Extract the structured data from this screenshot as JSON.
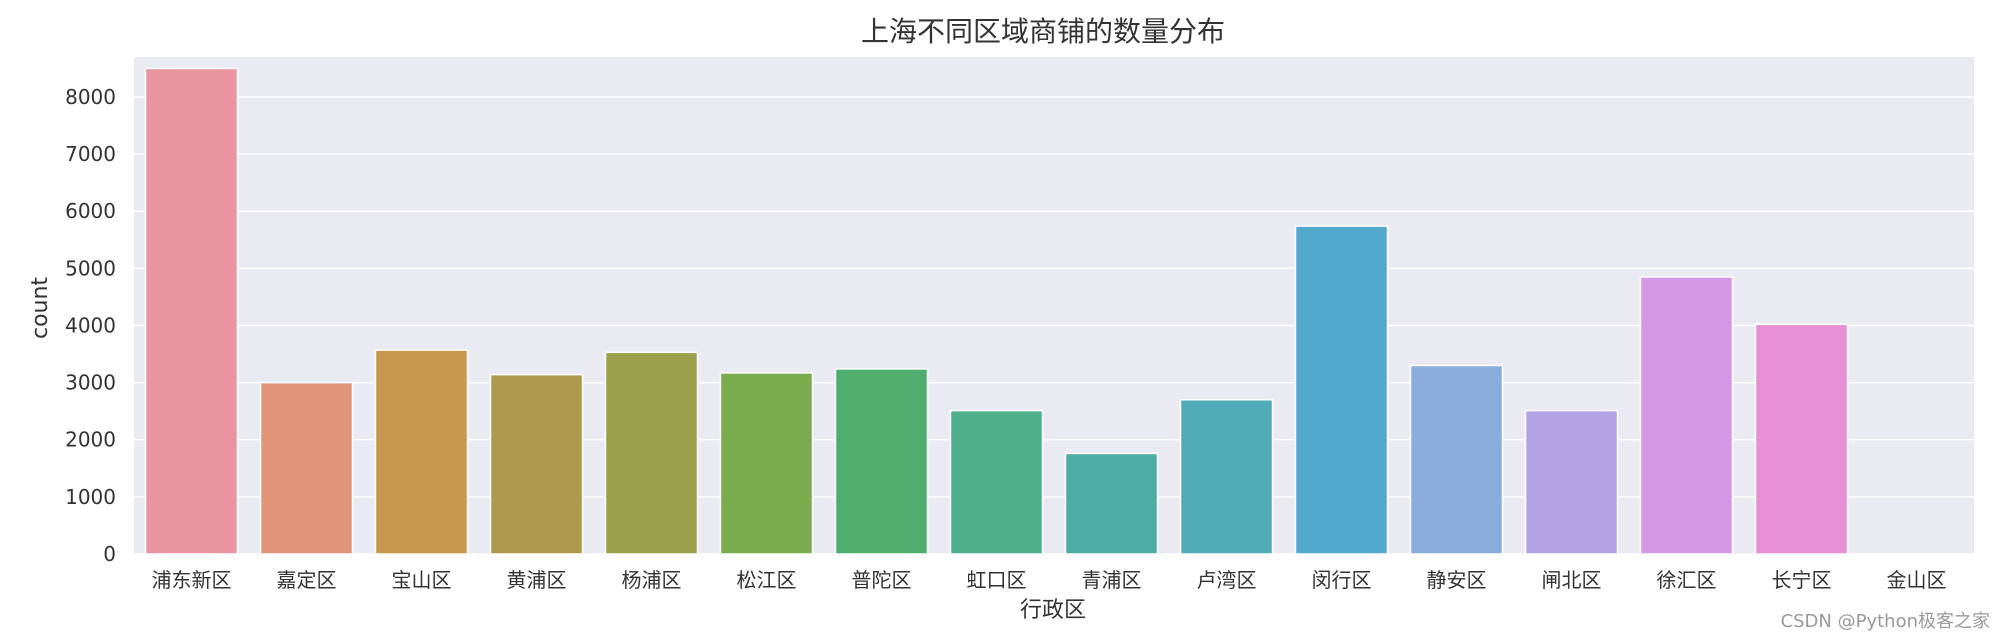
{
  "chart_data": {
    "type": "bar",
    "title": "上海不同区域商铺的数量分布",
    "xlabel": "行政区",
    "ylabel": "count",
    "categories": [
      "浦东新区",
      "嘉定区",
      "宝山区",
      "黄浦区",
      "杨浦区",
      "松江区",
      "普陀区",
      "虹口区",
      "青浦区",
      "卢湾区",
      "闵行区",
      "静安区",
      "闸北区",
      "徐汇区",
      "长宁区",
      "金山区"
    ],
    "values": [
      8500,
      3000,
      3570,
      3140,
      3530,
      3170,
      3240,
      2510,
      1760,
      2700,
      5740,
      3300,
      2510,
      4850,
      4020,
      0
    ],
    "ylim": [
      0,
      8700
    ],
    "yticks": [
      0,
      1000,
      2000,
      3000,
      4000,
      5000,
      6000,
      7000,
      8000
    ],
    "grid": true,
    "legend": "none",
    "background_color": "#eaeaf2",
    "grid_color": "#ffffff",
    "colors": [
      "#e8959f",
      "#e3957a",
      "#c8984f",
      "#ad9a4b",
      "#9aa04c",
      "#7aab4c",
      "#4fae6e",
      "#4eaf8a",
      "#4eaca4",
      "#52acb7",
      "#52a9cc",
      "#8aadde",
      "#b3a4e6",
      "#d598e6",
      "#e68fd4",
      "#e88fb2"
    ]
  },
  "watermark": "CSDN @Python极客之家"
}
